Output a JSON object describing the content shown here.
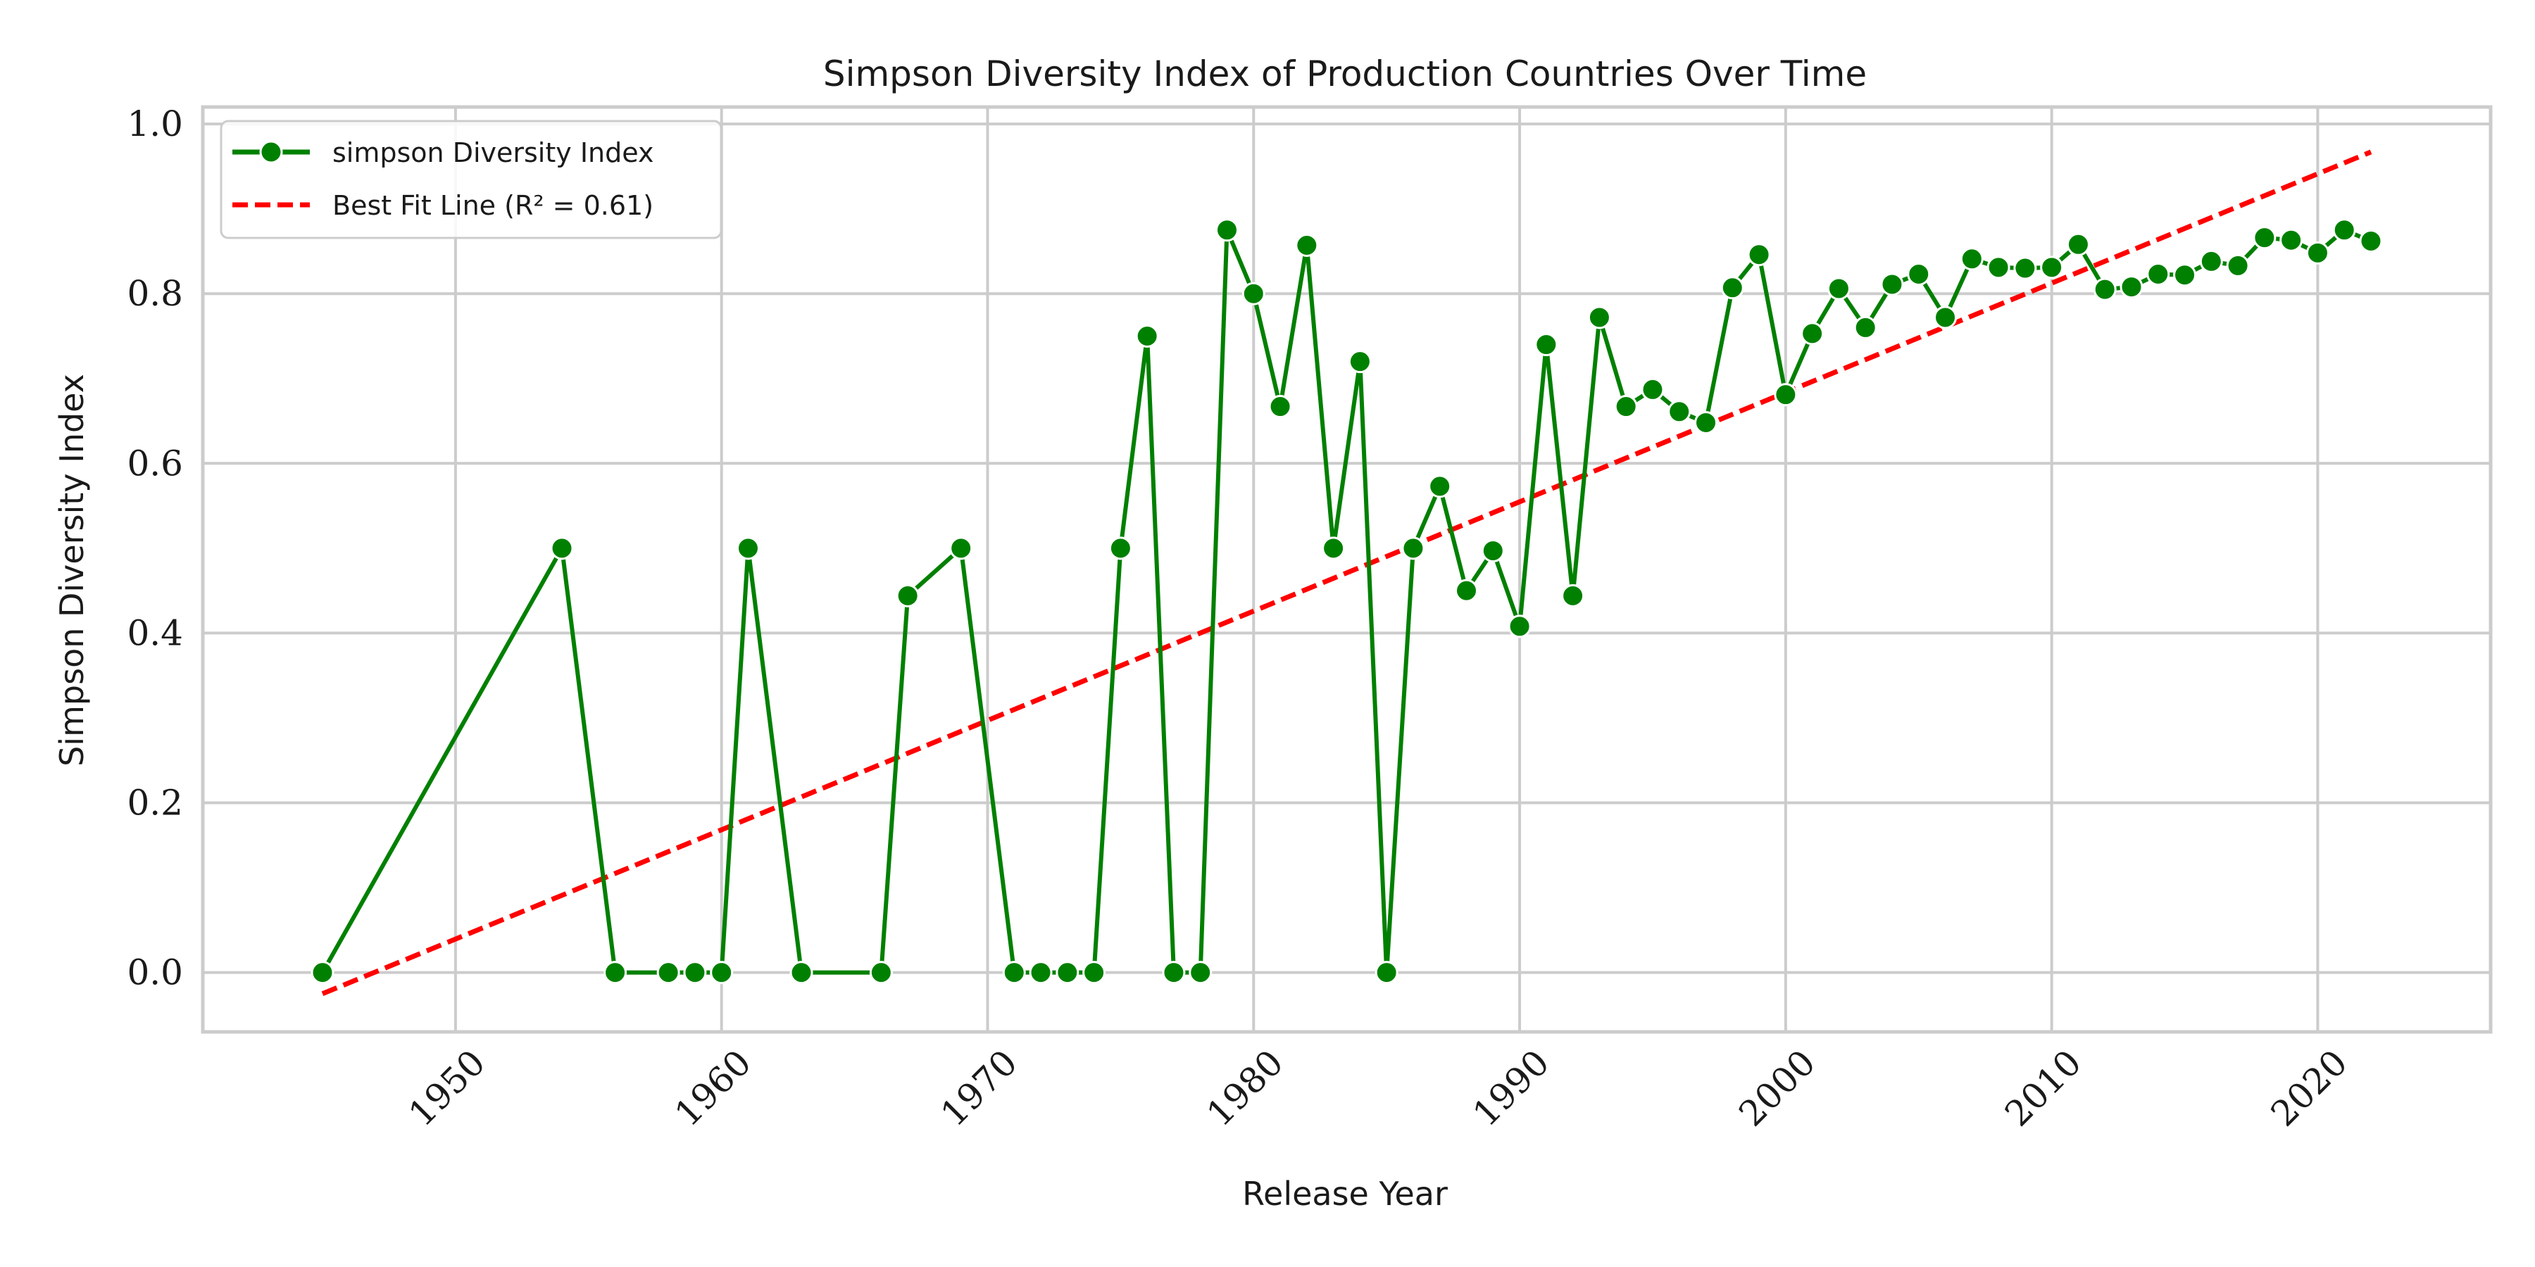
{
  "chart_data": {
    "type": "line",
    "title": "Simpson Diversity Index of Production Countries Over Time",
    "xlabel": "Release Year",
    "ylabel": "Simpson Diversity Index",
    "xlim": [
      1940.5,
      2026.5
    ],
    "ylim": [
      -0.07,
      1.02
    ],
    "xticks": [
      1950,
      1960,
      1970,
      1980,
      1990,
      2000,
      2010,
      2020
    ],
    "xtick_labels": [
      "1950",
      "1960",
      "1970",
      "1980",
      "1990",
      "2000",
      "2010",
      "2020"
    ],
    "yticks": [
      0.0,
      0.2,
      0.4,
      0.6,
      0.8,
      1.0
    ],
    "ytick_labels": [
      "0.0",
      "0.2",
      "0.4",
      "0.6",
      "0.8",
      "1.0"
    ],
    "grid": true,
    "legend_position": "top-left",
    "series": [
      {
        "name": "simpson Diversity Index",
        "color": "#008000",
        "marker": "circle",
        "x": [
          1945,
          1954,
          1956,
          1958,
          1959,
          1960,
          1961,
          1963,
          1966,
          1967,
          1969,
          1971,
          1972,
          1973,
          1974,
          1975,
          1976,
          1977,
          1978,
          1979,
          1980,
          1981,
          1982,
          1983,
          1984,
          1985,
          1986,
          1987,
          1988,
          1989,
          1990,
          1991,
          1992,
          1993,
          1994,
          1995,
          1996,
          1997,
          1998,
          1999,
          2000,
          2001,
          2002,
          2003,
          2004,
          2005,
          2006,
          2007,
          2008,
          2009,
          2010,
          2011,
          2012,
          2013,
          2014,
          2015,
          2016,
          2017,
          2018,
          2019,
          2020,
          2021,
          2022
        ],
        "y": [
          0.0,
          0.5,
          0.0,
          0.0,
          0.0,
          0.0,
          0.5,
          0.0,
          0.0,
          0.444,
          0.5,
          0.0,
          0.0,
          0.0,
          0.0,
          0.5,
          0.75,
          0.0,
          0.0,
          0.875,
          0.8,
          0.667,
          0.857,
          0.5,
          0.72,
          0.0,
          0.5,
          0.573,
          0.45,
          0.497,
          0.408,
          0.74,
          0.444,
          0.772,
          0.667,
          0.687,
          0.661,
          0.648,
          0.807,
          0.846,
          0.681,
          0.753,
          0.806,
          0.76,
          0.811,
          0.823,
          0.772,
          0.841,
          0.831,
          0.83,
          0.831,
          0.858,
          0.805,
          0.808,
          0.823,
          0.822,
          0.838,
          0.833,
          0.866,
          0.863,
          0.848,
          0.875,
          0.862
        ]
      },
      {
        "name": "Best Fit Line (R² = 0.61)",
        "color": "#ff0000",
        "style": "dashed",
        "x": [
          1945,
          2022
        ],
        "y": [
          -0.025,
          0.967
        ]
      }
    ]
  }
}
